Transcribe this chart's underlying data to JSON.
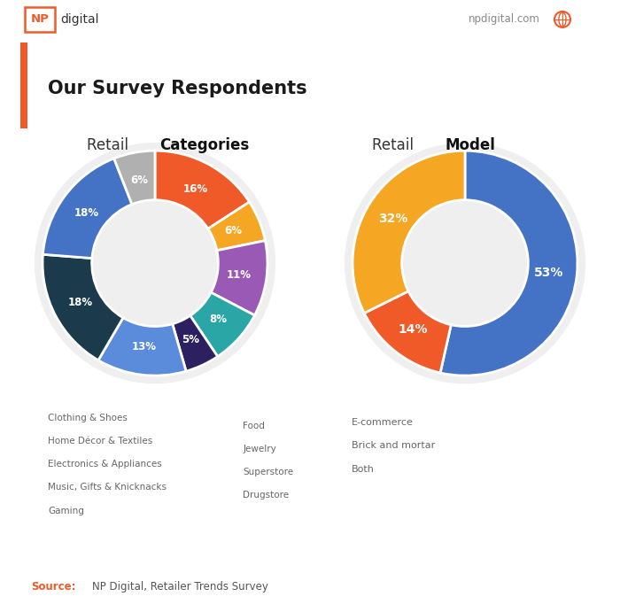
{
  "cat_labels": [
    "Clothing & Shoes",
    "Home Décor & Textiles",
    "Electronics & Appliances",
    "Music, Gifts & Knicknacks",
    "Gaming",
    "Food",
    "Jewelry",
    "Superstore",
    "Drugstore"
  ],
  "cat_values": [
    16,
    11,
    18,
    8,
    5,
    18,
    6,
    13,
    6
  ],
  "cat_colors": [
    "#F05A28",
    "#9B59B6",
    "#1B3A4B",
    "#2AA6A6",
    "#2D2060",
    "#4472C4",
    "#F5A623",
    "#5B8CDB",
    "#B0B0B0"
  ],
  "cat_pct_labels": [
    "16%",
    "11%",
    "18%",
    "8%",
    "5%",
    "18%",
    "6%",
    "13%",
    "6%"
  ],
  "cat_startangle": 90,
  "model_labels": [
    "E-commerce",
    "Brick and mortar",
    "Both"
  ],
  "model_values": [
    53,
    14,
    32
  ],
  "model_colors": [
    "#4472C4",
    "#F05A28",
    "#F5A623"
  ],
  "model_pct_labels": [
    "53%",
    "14%",
    "32%"
  ],
  "model_startangle": 90,
  "title": "Our Survey Respondents",
  "source_label": "Source:",
  "source_text": "NP Digital, Retailer Trends Survey",
  "npdigital_text": "npdigital.com",
  "bg_color": "#FFFFFF",
  "header_bg": "#FEF0EC",
  "header_border": "#F05A28",
  "footer_bg": "#F7F7F7",
  "legend_left_col1": [
    [
      "Clothing & Shoes",
      "#F05A28"
    ],
    [
      "Home Décor & Textiles",
      "#9B59B6"
    ],
    [
      "Electronics & Appliances",
      "#1B3A4B"
    ],
    [
      "Music, Gifts & Knicknacks",
      "#2AA6A6"
    ],
    [
      "Gaming",
      "#2D2060"
    ]
  ],
  "legend_left_col2": [
    [
      "Food",
      "#4472C4"
    ],
    [
      "Jewelry",
      "#F5A623"
    ],
    [
      "Superstore",
      "#5B8CDB"
    ],
    [
      "Drugstore",
      "#B0B0B0"
    ]
  ],
  "legend_right": [
    [
      "E-commerce",
      "#4472C4"
    ],
    [
      "Brick and mortar",
      "#F05A28"
    ],
    [
      "Both",
      "#F5A623"
    ]
  ]
}
